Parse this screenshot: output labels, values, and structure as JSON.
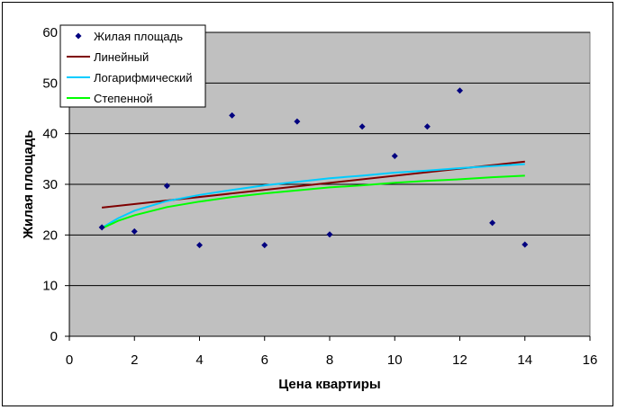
{
  "chart_data": {
    "type": "scatter",
    "title": "",
    "xlabel": "Цена квартиры",
    "ylabel": "Жилая площадь",
    "xlim": [
      0,
      16
    ],
    "ylim": [
      0,
      60
    ],
    "xticks": [
      0,
      2,
      4,
      6,
      8,
      10,
      12,
      14,
      16
    ],
    "yticks": [
      0,
      10,
      20,
      30,
      40,
      50,
      60
    ],
    "grid": "horizontal",
    "legend_position": "top-left",
    "plot_background": "#c0c0c0",
    "series": [
      {
        "name": "Жилая площадь",
        "kind": "points",
        "color": "#00007f",
        "marker": "diamond",
        "x": [
          1,
          2,
          3,
          4,
          5,
          6,
          7,
          8,
          9,
          10,
          11,
          12,
          13,
          14
        ],
        "y": [
          21.5,
          20.7,
          29.7,
          18,
          43.6,
          18,
          42.4,
          20.1,
          41.4,
          35.6,
          41.4,
          48.5,
          22.4,
          18.1
        ]
      },
      {
        "name": "Линейный",
        "kind": "trendline",
        "model": "linear",
        "color": "#7f0000",
        "x": [
          1,
          14
        ],
        "y": [
          25.4,
          34.5
        ]
      },
      {
        "name": "Логарифмический",
        "kind": "trendline",
        "model": "logarithmic",
        "color": "#00ccff",
        "x": [
          1,
          1.5,
          2,
          3,
          4,
          5,
          6,
          7,
          8,
          9,
          10,
          11,
          12,
          13,
          14
        ],
        "y": [
          21.4,
          23.3,
          24.8,
          26.7,
          27.9,
          28.9,
          29.8,
          30.5,
          31.2,
          31.7,
          32.3,
          32.7,
          33.2,
          33.6,
          34.0
        ]
      },
      {
        "name": "Степенной",
        "kind": "trendline",
        "model": "power",
        "color": "#00ff00",
        "x": [
          1,
          1.5,
          2,
          3,
          4,
          5,
          6,
          7,
          8,
          9,
          10,
          11,
          12,
          13,
          14
        ],
        "y": [
          21.3,
          22.8,
          23.9,
          25.5,
          26.6,
          27.5,
          28.2,
          28.8,
          29.4,
          29.8,
          30.3,
          30.7,
          31.0,
          31.4,
          31.7
        ]
      }
    ]
  }
}
